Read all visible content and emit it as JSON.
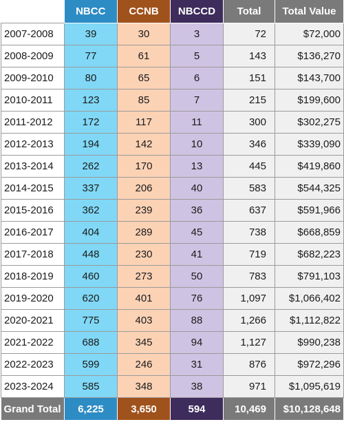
{
  "chart_data": {
    "type": "table",
    "columns": [
      "",
      "NBCC",
      "CCNB",
      "NBCCD",
      "Total",
      "Total Value"
    ],
    "rows": [
      {
        "year": "2007-2008",
        "nbcc": "39",
        "ccnb": "30",
        "nbccd": "3",
        "total": "72",
        "value": "$72,000"
      },
      {
        "year": "2008-2009",
        "nbcc": "77",
        "ccnb": "61",
        "nbccd": "5",
        "total": "143",
        "value": "$136,270"
      },
      {
        "year": "2009-2010",
        "nbcc": "80",
        "ccnb": "65",
        "nbccd": "6",
        "total": "151",
        "value": "$143,700"
      },
      {
        "year": "2010-2011",
        "nbcc": "123",
        "ccnb": "85",
        "nbccd": "7",
        "total": "215",
        "value": "$199,600"
      },
      {
        "year": "2011-2012",
        "nbcc": "172",
        "ccnb": "117",
        "nbccd": "11",
        "total": "300",
        "value": "$302,275"
      },
      {
        "year": "2012-2013",
        "nbcc": "194",
        "ccnb": "142",
        "nbccd": "10",
        "total": "346",
        "value": "$339,090"
      },
      {
        "year": "2013-2014",
        "nbcc": "262",
        "ccnb": "170",
        "nbccd": "13",
        "total": "445",
        "value": "$419,860"
      },
      {
        "year": "2014-2015",
        "nbcc": "337",
        "ccnb": "206",
        "nbccd": "40",
        "total": "583",
        "value": "$544,325"
      },
      {
        "year": "2015-2016",
        "nbcc": "362",
        "ccnb": "239",
        "nbccd": "36",
        "total": "637",
        "value": "$591,966"
      },
      {
        "year": "2016-2017",
        "nbcc": "404",
        "ccnb": "289",
        "nbccd": "45",
        "total": "738",
        "value": "$668,859"
      },
      {
        "year": "2017-2018",
        "nbcc": "448",
        "ccnb": "230",
        "nbccd": "41",
        "total": "719",
        "value": "$682,223"
      },
      {
        "year": "2018-2019",
        "nbcc": "460",
        "ccnb": "273",
        "nbccd": "50",
        "total": "783",
        "value": "$791,103"
      },
      {
        "year": "2019-2020",
        "nbcc": "620",
        "ccnb": "401",
        "nbccd": "76",
        "total": "1,097",
        "value": "$1,066,402"
      },
      {
        "year": "2020-2021",
        "nbcc": "775",
        "ccnb": "403",
        "nbccd": "88",
        "total": "1,266",
        "value": "$1,112,822"
      },
      {
        "year": "2021-2022",
        "nbcc": "688",
        "ccnb": "345",
        "nbccd": "94",
        "total": "1,127",
        "value": "$990,238"
      },
      {
        "year": "2022-2023",
        "nbcc": "599",
        "ccnb": "246",
        "nbccd": "31",
        "total": "876",
        "value": "$972,296"
      },
      {
        "year": "2023-2024",
        "nbcc": "585",
        "ccnb": "348",
        "nbccd": "38",
        "total": "971",
        "value": "$1,095,619"
      }
    ],
    "grand_total": {
      "label": "Grand Total",
      "nbcc": "6,225",
      "ccnb": "3,650",
      "nbccd": "594",
      "total": "10,469",
      "value": "$10,128,648"
    },
    "colors": {
      "nbcc_header": "#2e8cc4",
      "nbcc_cell": "#80d8f6",
      "ccnb_header": "#a0521c",
      "ccnb_cell": "#fcd2b5",
      "nbccd_header": "#3d2c5c",
      "nbccd_cell": "#cfc3e3",
      "total_header": "#7a7a7a",
      "total_cell": "#f0f0f0"
    }
  }
}
